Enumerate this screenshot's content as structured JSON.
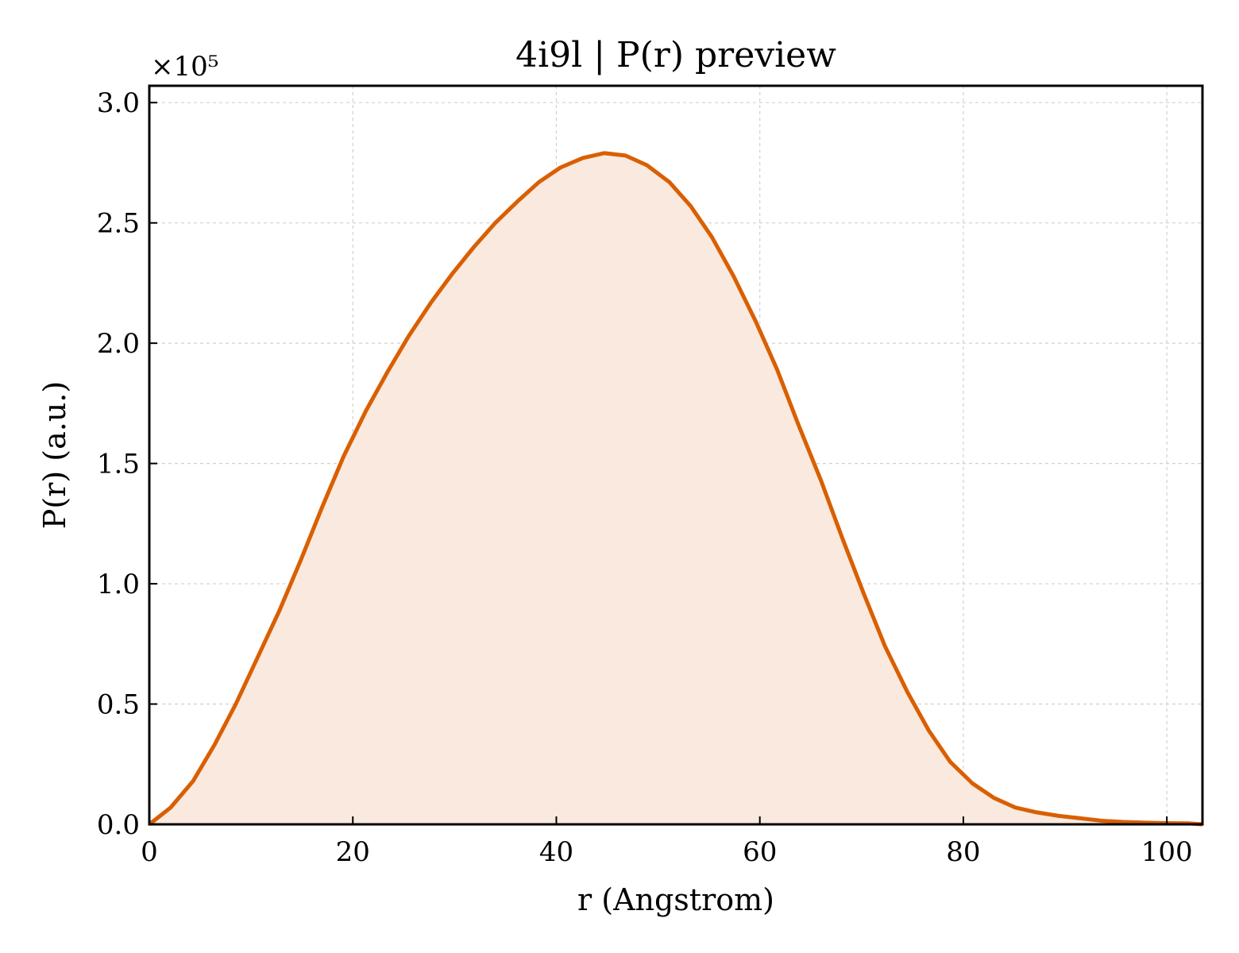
{
  "chart_data": {
    "type": "area",
    "title": "4i9l | P(r) preview",
    "xlabel": "r (Angstrom)",
    "ylabel": "P(r) (a.u.)",
    "y_offset_label": "×10⁵",
    "xlim": [
      0,
      103.5
    ],
    "ylim": [
      0,
      3.07
    ],
    "y_scale_multiplier": 100000,
    "xticks": [
      {
        "value": 0,
        "label": "0"
      },
      {
        "value": 20,
        "label": "20"
      },
      {
        "value": 40,
        "label": "40"
      },
      {
        "value": 60,
        "label": "60"
      },
      {
        "value": 80,
        "label": "80"
      },
      {
        "value": 100,
        "label": "100"
      }
    ],
    "yticks": [
      {
        "value": 0.0,
        "label": "0.0"
      },
      {
        "value": 0.5,
        "label": "0.5"
      },
      {
        "value": 1.0,
        "label": "1.0"
      },
      {
        "value": 1.5,
        "label": "1.5"
      },
      {
        "value": 2.0,
        "label": "2.0"
      },
      {
        "value": 2.5,
        "label": "2.5"
      },
      {
        "value": 3.0,
        "label": "3.0"
      }
    ],
    "grid": true,
    "colors": {
      "line": "#d95f02",
      "fill": "#f9e9de"
    },
    "series": [
      {
        "x": [
          0,
          2.1,
          4.3,
          6.4,
          8.5,
          10.6,
          12.8,
          14.9,
          17.0,
          19.1,
          21.3,
          23.4,
          25.5,
          27.7,
          29.8,
          31.9,
          34.0,
          36.2,
          38.3,
          40.4,
          42.6,
          44.7,
          46.8,
          48.9,
          51.1,
          53.2,
          55.3,
          57.4,
          59.6,
          61.7,
          63.8,
          66.0,
          68.1,
          70.2,
          72.3,
          74.5,
          76.6,
          78.7,
          80.9,
          83.0,
          85.1,
          87.2,
          89.4,
          91.5,
          93.6,
          95.7,
          97.9,
          100.0,
          102.1,
          103.5
        ],
        "y": [
          0.0,
          0.07,
          0.18,
          0.33,
          0.5,
          0.69,
          0.89,
          1.1,
          1.32,
          1.53,
          1.72,
          1.88,
          2.03,
          2.17,
          2.29,
          2.4,
          2.5,
          2.59,
          2.67,
          2.73,
          2.77,
          2.79,
          2.78,
          2.74,
          2.67,
          2.57,
          2.44,
          2.28,
          2.09,
          1.89,
          1.66,
          1.43,
          1.19,
          0.96,
          0.74,
          0.55,
          0.39,
          0.26,
          0.17,
          0.11,
          0.07,
          0.05,
          0.035,
          0.025,
          0.015,
          0.01,
          0.007,
          0.005,
          0.004,
          0.0
        ]
      }
    ]
  }
}
